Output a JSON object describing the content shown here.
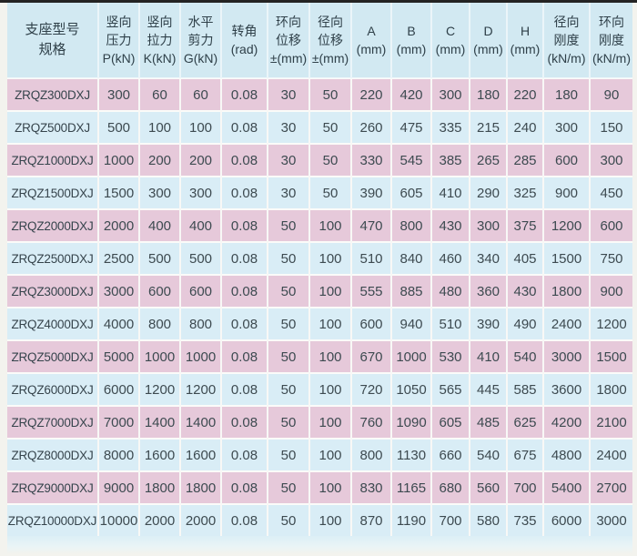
{
  "colors": {
    "top_edge_line": "#232323",
    "header_background": "#d2e9f2",
    "row_pink": "#e6c9da",
    "row_blue": "#d9edf6",
    "text": "#3d4a50",
    "margin_background": "#f3f3ee"
  },
  "table": {
    "columns": [
      {
        "id": "model",
        "lines": [
          "支座型号",
          "规格"
        ]
      },
      {
        "id": "vertical-pressure",
        "lines": [
          "竖向",
          "压力",
          "P(kN)"
        ]
      },
      {
        "id": "vertical-tension",
        "lines": [
          "竖向",
          "拉力",
          "K(kN)"
        ]
      },
      {
        "id": "horizontal-shear",
        "lines": [
          "水平",
          "剪力",
          "G(kN)"
        ]
      },
      {
        "id": "rotation-angle",
        "lines": [
          "转角",
          "(rad)"
        ]
      },
      {
        "id": "hoop-displacement",
        "lines": [
          "环向",
          "位移",
          "±(mm)"
        ]
      },
      {
        "id": "radial-displacement",
        "lines": [
          "径向",
          "位移",
          "±(mm)"
        ]
      },
      {
        "id": "dim-a",
        "lines": [
          "A",
          "(mm)"
        ]
      },
      {
        "id": "dim-b",
        "lines": [
          "B",
          "(mm)"
        ]
      },
      {
        "id": "dim-c",
        "lines": [
          "C",
          "(mm)"
        ]
      },
      {
        "id": "dim-d",
        "lines": [
          "D",
          "(mm)"
        ]
      },
      {
        "id": "dim-h",
        "lines": [
          "H",
          "(mm)"
        ]
      },
      {
        "id": "radial-stiffness",
        "lines": [
          "径向",
          "刚度",
          "(kN/m)"
        ]
      },
      {
        "id": "hoop-stiffness",
        "lines": [
          "环向",
          "刚度",
          "(kN/m)"
        ]
      }
    ],
    "rows": [
      [
        "ZRQZ300DXJ",
        "300",
        "60",
        "60",
        "0.08",
        "30",
        "50",
        "220",
        "420",
        "300",
        "180",
        "220",
        "180",
        "90"
      ],
      [
        "ZRQZ500DXJ",
        "500",
        "100",
        "100",
        "0.08",
        "30",
        "50",
        "260",
        "475",
        "335",
        "215",
        "240",
        "300",
        "150"
      ],
      [
        "ZRQZ1000DXJ",
        "1000",
        "200",
        "200",
        "0.08",
        "30",
        "50",
        "330",
        "545",
        "385",
        "265",
        "285",
        "600",
        "300"
      ],
      [
        "ZRQZ1500DXJ",
        "1500",
        "300",
        "300",
        "0.08",
        "30",
        "50",
        "390",
        "605",
        "410",
        "290",
        "325",
        "900",
        "450"
      ],
      [
        "ZRQZ2000DXJ",
        "2000",
        "400",
        "400",
        "0.08",
        "50",
        "100",
        "470",
        "800",
        "430",
        "300",
        "375",
        "1200",
        "600"
      ],
      [
        "ZRQZ2500DXJ",
        "2500",
        "500",
        "500",
        "0.08",
        "50",
        "100",
        "510",
        "840",
        "460",
        "340",
        "405",
        "1500",
        "750"
      ],
      [
        "ZRQZ3000DXJ",
        "3000",
        "600",
        "600",
        "0.08",
        "50",
        "100",
        "555",
        "885",
        "480",
        "360",
        "430",
        "1800",
        "900"
      ],
      [
        "ZRQZ4000DXJ",
        "4000",
        "800",
        "800",
        "0.08",
        "50",
        "100",
        "600",
        "940",
        "510",
        "390",
        "490",
        "2400",
        "1200"
      ],
      [
        "ZRQZ5000DXJ",
        "5000",
        "1000",
        "1000",
        "0.08",
        "50",
        "100",
        "670",
        "1000",
        "530",
        "410",
        "540",
        "3000",
        "1500"
      ],
      [
        "ZRQZ6000DXJ",
        "6000",
        "1200",
        "1200",
        "0.08",
        "50",
        "100",
        "720",
        "1050",
        "565",
        "445",
        "585",
        "3600",
        "1800"
      ],
      [
        "ZRQZ7000DXJ",
        "7000",
        "1400",
        "1400",
        "0.08",
        "50",
        "100",
        "760",
        "1090",
        "605",
        "485",
        "625",
        "4200",
        "2100"
      ],
      [
        "ZRQZ8000DXJ",
        "8000",
        "1600",
        "1600",
        "0.08",
        "50",
        "100",
        "800",
        "1130",
        "660",
        "540",
        "675",
        "4800",
        "2400"
      ],
      [
        "ZRQZ9000DXJ",
        "9000",
        "1800",
        "1800",
        "0.08",
        "50",
        "100",
        "830",
        "1165",
        "680",
        "560",
        "700",
        "5400",
        "2700"
      ],
      [
        "ZRQZ10000DXJ",
        "10000",
        "2000",
        "2000",
        "0.08",
        "50",
        "100",
        "870",
        "1190",
        "700",
        "580",
        "735",
        "6000",
        "3000"
      ]
    ]
  }
}
